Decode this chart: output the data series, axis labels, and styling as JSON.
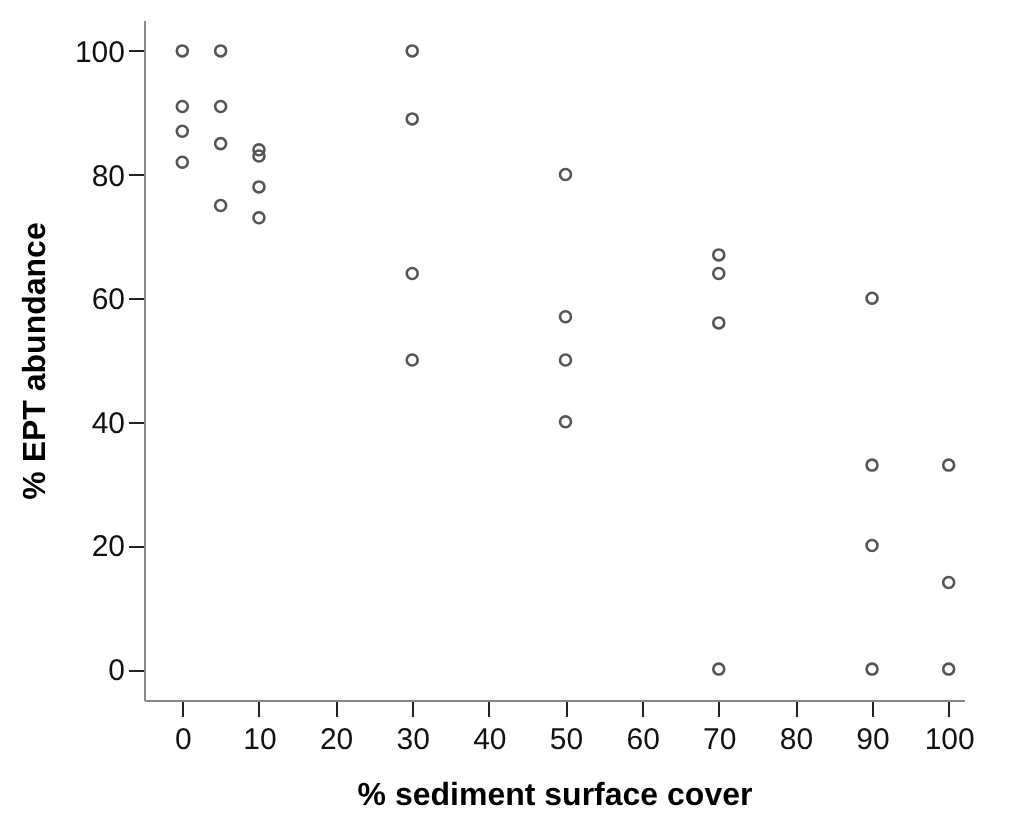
{
  "chart_data": {
    "type": "scatter",
    "xlabel": "% sediment surface cover",
    "ylabel": "% EPT abundance",
    "x": [
      0,
      0,
      0,
      0,
      5,
      5,
      5,
      5,
      10,
      10,
      10,
      10,
      30,
      30,
      30,
      30,
      50,
      50,
      50,
      50,
      70,
      70,
      70,
      70,
      90,
      90,
      90,
      90,
      100,
      100,
      100
    ],
    "series": [
      {
        "color": "#555555",
        "values": [
          100,
          91,
          87,
          82,
          100,
          91,
          85,
          75,
          84,
          83,
          78,
          73,
          100,
          89,
          64,
          50,
          80,
          57,
          50,
          40,
          67,
          64,
          56,
          0,
          60,
          33,
          20,
          0,
          33,
          14,
          0
        ]
      }
    ],
    "xlim": [
      -5,
      102
    ],
    "ylim": [
      -5,
      105
    ],
    "xticks": [
      0,
      10,
      20,
      30,
      40,
      50,
      60,
      70,
      80,
      90,
      100
    ],
    "yticks": [
      0,
      20,
      40,
      60,
      80,
      100
    ],
    "marker": "circle",
    "grid": false,
    "legend": false
  }
}
